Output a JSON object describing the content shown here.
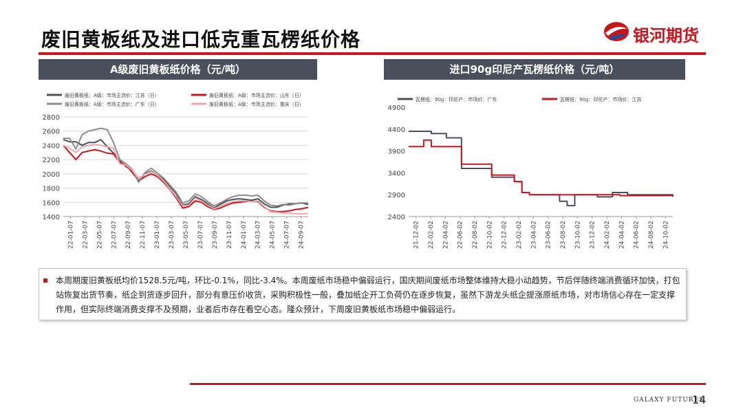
{
  "page": {
    "title": "废旧黄板纸及进口低克重瓦楞纸价格",
    "brand_name": "银河期货",
    "footer_brand": "GALAXY FUTURES",
    "page_number": "14",
    "colors": {
      "accent": "#c8161d",
      "header_bg": "#4a4f5c"
    }
  },
  "left_chart": {
    "header": "A级废旧黄板纸价格（元/吨）"
  },
  "right_chart": {
    "header": "进口90g印尼产瓦楞纸价格（元/吨）"
  },
  "chart_data": [
    {
      "type": "line",
      "ylim": [
        1400,
        2800
      ],
      "yticks": [
        1400,
        1600,
        1800,
        2000,
        2200,
        2400,
        2600,
        2800
      ],
      "x_labels": [
        "22-01-07",
        "22-03-07",
        "22-05-07",
        "22-07-07",
        "22-09-07",
        "22-11-07",
        "23-01-07",
        "23-03-07",
        "23-05-07",
        "23-07-07",
        "23-09-07",
        "23-11-07",
        "24-01-07",
        "24-03-07",
        "24-05-07",
        "24-07-07",
        "24-09-07"
      ],
      "grid": true,
      "legend_position": "top",
      "series": [
        {
          "name": "废旧黄板纸：A级：市场主流价：江苏（日）",
          "color": "#4a4f5c",
          "values": [
            2480,
            2450,
            2450,
            2400,
            2440,
            2440,
            2480,
            2380,
            2290,
            2180,
            2100,
            2050,
            1900,
            2000,
            2040,
            1980,
            1920,
            1820,
            1720,
            1560,
            1580,
            1680,
            1640,
            1580,
            1520,
            1570,
            1620,
            1640,
            1650,
            1640,
            1630,
            1650,
            1580,
            1530,
            1530,
            1560,
            1580,
            1580,
            1590,
            1570
          ]
        },
        {
          "name": "废旧黄板纸：A级：市场主流价：山东（日）",
          "color": "#c8161d",
          "values": [
            2400,
            2300,
            2200,
            2300,
            2320,
            2340,
            2320,
            2290,
            2280,
            2160,
            2120,
            2020,
            1900,
            1960,
            2000,
            1960,
            1880,
            1780,
            1660,
            1520,
            1540,
            1620,
            1600,
            1540,
            1500,
            1520,
            1560,
            1590,
            1600,
            1610,
            1620,
            1610,
            1530,
            1480,
            1470,
            1470,
            1480,
            1500,
            1510,
            1530
          ]
        },
        {
          "name": "废旧黄板纸：A级：市场主流价：广东（日）",
          "color": "#8c8c8c",
          "values": [
            2500,
            2500,
            2350,
            2550,
            2600,
            2620,
            2640,
            2620,
            2440,
            2200,
            2140,
            2060,
            1880,
            2020,
            2080,
            2010,
            1940,
            1840,
            1740,
            1590,
            1620,
            1720,
            1680,
            1610,
            1550,
            1590,
            1640,
            1680,
            1700,
            1700,
            1690,
            1700,
            1620,
            1560,
            1550,
            1570,
            1560,
            1580,
            1590,
            1590
          ]
        },
        {
          "name": "废旧黄板纸：A级：市场主流价：重庆（日）",
          "color": "#f2a6a8",
          "values": [
            2400,
            2360,
            2300,
            2380,
            2400,
            2410,
            2400,
            2380,
            2360,
            2140,
            2120,
            2050,
            1940,
            1990,
            2030,
            1980,
            1900,
            1790,
            1680,
            1550,
            1560,
            1660,
            1620,
            1560,
            1510,
            1540,
            1590,
            1610,
            1620,
            1620,
            1610,
            1620,
            1540,
            1470,
            1460,
            1450,
            1450,
            1440,
            1440,
            1440
          ]
        }
      ]
    },
    {
      "type": "line",
      "ylim": [
        2400,
        4900
      ],
      "yticks": [
        2400,
        2900,
        3400,
        3900,
        4400,
        4900
      ],
      "x_labels": [
        "21-12-02",
        "22-02-02",
        "22-04-02",
        "22-06-02",
        "22-08-02",
        "22-10-02",
        "22-12-02",
        "23-02-02",
        "23-04-02",
        "23-06-02",
        "23-08-02",
        "23-10-02",
        "23-12-02",
        "24-02-02",
        "24-04-02",
        "24-06-02",
        "24-08-02",
        "24-10-02"
      ],
      "grid": false,
      "legend_position": "top",
      "series": [
        {
          "name": "瓦楞纸：90g：印尼产：市场价：广东",
          "color": "#4a4f5c",
          "values": [
            4350,
            4350,
            4350,
            4300,
            4300,
            4200,
            4200,
            3500,
            3500,
            3500,
            3500,
            3300,
            3300,
            3300,
            3200,
            2950,
            2900,
            2900,
            2900,
            2900,
            2750,
            2650,
            2900,
            2900,
            2900,
            2850,
            2850,
            2950,
            2950,
            2900,
            2900,
            2900,
            2900,
            2900,
            2900,
            2850
          ]
        },
        {
          "name": "瓦楞纸：90g：印尼产：市场价：江苏",
          "color": "#c8161d",
          "values": [
            4000,
            4000,
            4150,
            4000,
            4000,
            4000,
            4000,
            3600,
            3600,
            3600,
            3600,
            3350,
            3350,
            3350,
            3200,
            2950,
            2900,
            2900,
            2900,
            2900,
            2900,
            2900,
            2900,
            2900,
            2900,
            2900,
            2900,
            2900,
            2880,
            2880,
            2880,
            2880,
            2880,
            2880,
            2880,
            2880
          ]
        }
      ]
    }
  ],
  "note": {
    "text": "本周期废旧黄板纸均价1528.5元/吨，环比-0.1%，同比-3.4%。本周废纸市场稳中偏弱运行，国庆期间废纸市场整体维持大稳小动趋势，节后伴随终端消费循环加快，打包站恢复出货节奏，纸企到货逐步回升，部分有意压价收货，采购积极性一般，叠加纸企开工负荷仍在逐步恢复，虽然下游龙头纸企提涨原纸市场，对市场信心存在一定支撑作用，但实际终端消费支撑不及预期，业者后市存在看空心态。隆众预计，下周废旧黄板纸市场稳中偏弱运行。"
  }
}
